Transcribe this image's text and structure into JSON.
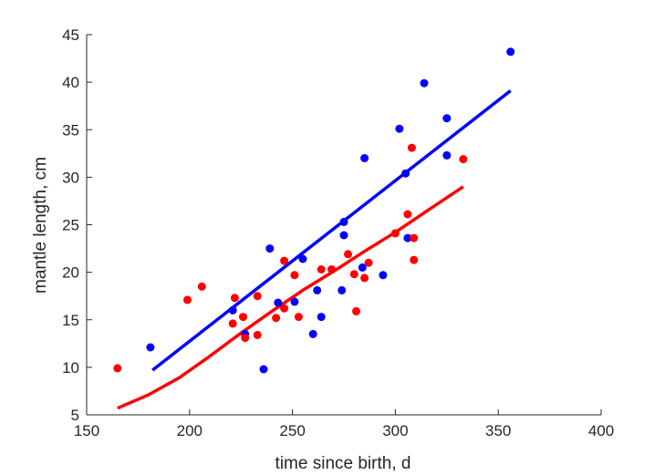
{
  "chart_data": {
    "type": "scatter",
    "title": "",
    "xlabel": "time since birth, d",
    "ylabel": "mantle length, cm",
    "xlim": [
      150,
      400
    ],
    "ylim": [
      5,
      45
    ],
    "xticks": [
      150,
      200,
      250,
      300,
      350,
      400
    ],
    "yticks": [
      5,
      10,
      15,
      20,
      25,
      30,
      35,
      40,
      45
    ],
    "grid": false,
    "legend": "none",
    "series": [
      {
        "color": "#0000ff",
        "points": [
          [
            181,
            12.1
          ],
          [
            221,
            16.0
          ],
          [
            227,
            13.5
          ],
          [
            236,
            9.8
          ],
          [
            239,
            22.5
          ],
          [
            243,
            16.8
          ],
          [
            251,
            16.9
          ],
          [
            255,
            21.4
          ],
          [
            260,
            13.5
          ],
          [
            262,
            18.1
          ],
          [
            264,
            15.3
          ],
          [
            274,
            18.1
          ],
          [
            275,
            25.3
          ],
          [
            275,
            23.9
          ],
          [
            284,
            20.5
          ],
          [
            285,
            32.0
          ],
          [
            294,
            19.7
          ],
          [
            302,
            35.1
          ],
          [
            305,
            30.4
          ],
          [
            306,
            23.6
          ],
          [
            314,
            39.9
          ],
          [
            325,
            36.2
          ],
          [
            325,
            32.3
          ],
          [
            356,
            43.2
          ]
        ],
        "fit": [
          [
            182,
            9.7
          ],
          [
            356,
            39.1
          ]
        ]
      },
      {
        "color": "#ff0000",
        "points": [
          [
            165,
            9.9
          ],
          [
            199,
            17.1
          ],
          [
            206,
            18.5
          ],
          [
            221,
            14.6
          ],
          [
            222,
            17.3
          ],
          [
            226,
            15.3
          ],
          [
            227,
            13.1
          ],
          [
            233,
            17.5
          ],
          [
            233,
            13.4
          ],
          [
            242,
            15.2
          ],
          [
            246,
            21.2
          ],
          [
            246,
            16.2
          ],
          [
            251,
            19.7
          ],
          [
            253,
            15.3
          ],
          [
            264,
            20.3
          ],
          [
            269,
            20.3
          ],
          [
            277,
            21.9
          ],
          [
            280,
            19.8
          ],
          [
            281,
            15.9
          ],
          [
            285,
            19.4
          ],
          [
            287,
            21.0
          ],
          [
            300,
            24.1
          ],
          [
            306,
            26.1
          ],
          [
            308,
            33.1
          ],
          [
            309,
            23.6
          ],
          [
            309,
            21.3
          ],
          [
            333,
            31.9
          ]
        ],
        "fit": [
          [
            165,
            5.7
          ],
          [
            180,
            7.1
          ],
          [
            195,
            8.9
          ],
          [
            210,
            11.2
          ],
          [
            225,
            13.6
          ],
          [
            240,
            15.9
          ],
          [
            255,
            18.1
          ],
          [
            270,
            20.1
          ],
          [
            285,
            22.2
          ],
          [
            300,
            24.2
          ],
          [
            315,
            26.4
          ],
          [
            333,
            29.0
          ]
        ]
      }
    ]
  }
}
